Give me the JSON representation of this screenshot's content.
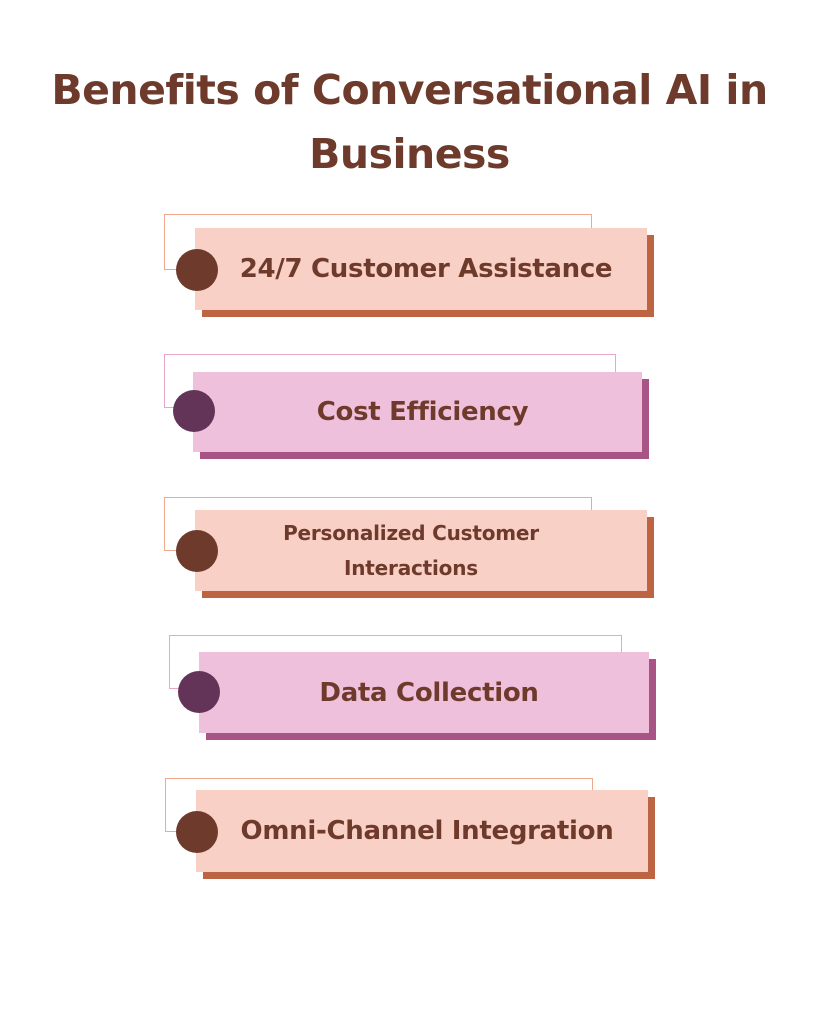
{
  "title": {
    "line1": "Benefits of Conversational AI in",
    "line2": "Business"
  },
  "colors": {
    "text": "#6e3a2b",
    "peach_fill": "#f8d0c6",
    "peach_shadow": "#bd6442",
    "peach_outline": "#f0a88e",
    "peach_dot": "#6e3a2b",
    "pink_fill": "#efc0dc",
    "pink_shadow": "#a85585",
    "pink_outline": "#e8a6c9",
    "pink_dot": "#643458"
  },
  "items": [
    {
      "label": "24/7 Customer Assistance",
      "theme": "peach"
    },
    {
      "label": "Cost Efficiency",
      "theme": "pink"
    },
    {
      "label": "Personalized Customer Interactions",
      "theme": "peach"
    },
    {
      "label": "Data Collection",
      "theme": "pink"
    },
    {
      "label": "Omni-Channel Integration",
      "theme": "peach"
    }
  ]
}
